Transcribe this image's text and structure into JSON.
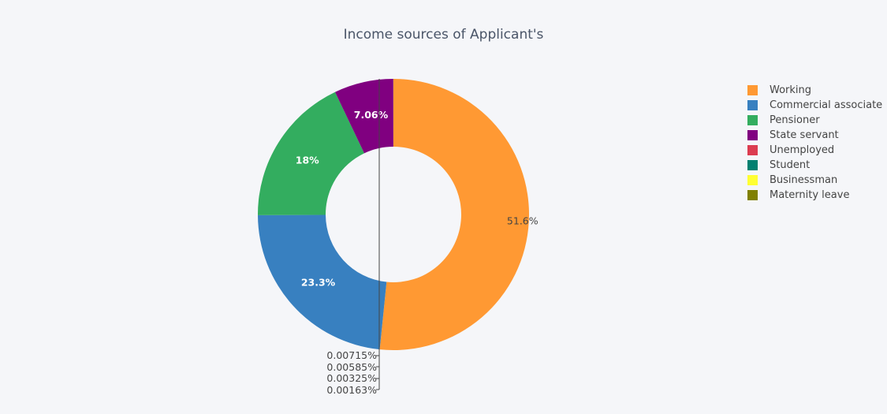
{
  "chart_data": {
    "type": "pie",
    "hole": 0.5,
    "title": "Income sources of Applicant's",
    "labels": [
      "Working",
      "Commercial associate",
      "Pensioner",
      "State servant",
      "Unemployed",
      "Student",
      "Businessman",
      "Maternity leave"
    ],
    "values": [
      51.6,
      23.3,
      18,
      7.06,
      0.00715,
      0.00585,
      0.00325,
      0.00163
    ],
    "text_labels": [
      "51.6%",
      "23.3%",
      "18%",
      "7.06%",
      "0.00715%",
      "0.00585%",
      "0.00325%",
      "0.00163%"
    ],
    "colors": [
      "#ff9933",
      "#3880c0",
      "#33ad5f",
      "#800080",
      "#dc3c50",
      "#008070",
      "#ffff33",
      "#808000"
    ],
    "legend_position": "right"
  }
}
